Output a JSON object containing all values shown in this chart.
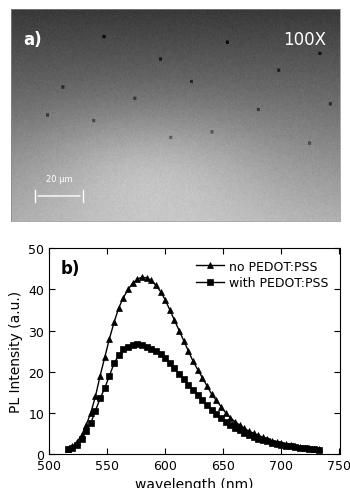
{
  "label_a": "a)",
  "label_b": "b)",
  "magnification": "100X",
  "scale_bar_text": "20 μm",
  "xlabel": "wavelength (nm)",
  "ylabel": "PL Intensity (a.u.)",
  "xlim": [
    500,
    750
  ],
  "ylim": [
    0,
    50
  ],
  "xticks": [
    500,
    550,
    600,
    650,
    700,
    750
  ],
  "yticks": [
    0,
    10,
    20,
    30,
    40,
    50
  ],
  "legend1": "no PEDOT:PSS",
  "legend2": "with PEDOT:PSS",
  "line_color": "#000000",
  "marker1": "^",
  "marker2": "s",
  "no_pedot_x": [
    516,
    520,
    524,
    528,
    532,
    536,
    540,
    544,
    548,
    552,
    556,
    560,
    564,
    568,
    572,
    576,
    580,
    584,
    588,
    592,
    596,
    600,
    604,
    608,
    612,
    616,
    620,
    624,
    628,
    632,
    636,
    640,
    644,
    648,
    652,
    656,
    660,
    664,
    668,
    672,
    676,
    680,
    684,
    688,
    692,
    696,
    700,
    704,
    708,
    712,
    716,
    720,
    724,
    728,
    732
  ],
  "no_pedot_y": [
    1.2,
    1.8,
    2.8,
    4.5,
    7.0,
    10.0,
    14.0,
    19.0,
    23.5,
    28.0,
    32.0,
    35.5,
    38.0,
    40.0,
    41.5,
    42.5,
    43.0,
    42.8,
    42.2,
    41.0,
    39.5,
    37.5,
    35.0,
    32.5,
    30.0,
    27.5,
    25.0,
    22.5,
    20.5,
    18.5,
    16.5,
    14.5,
    13.0,
    11.5,
    10.0,
    8.8,
    7.8,
    7.0,
    6.2,
    5.5,
    5.0,
    4.5,
    4.0,
    3.6,
    3.2,
    2.9,
    2.6,
    2.3,
    2.1,
    1.9,
    1.7,
    1.5,
    1.4,
    1.2,
    1.1
  ],
  "with_pedot_x": [
    516,
    520,
    524,
    528,
    532,
    536,
    540,
    544,
    548,
    552,
    556,
    560,
    564,
    568,
    572,
    576,
    580,
    584,
    588,
    592,
    596,
    600,
    604,
    608,
    612,
    616,
    620,
    624,
    628,
    632,
    636,
    640,
    644,
    648,
    652,
    656,
    660,
    664,
    668,
    672,
    676,
    680,
    684,
    688,
    692,
    696,
    700,
    704,
    708,
    712,
    716,
    720,
    724,
    728,
    732
  ],
  "with_pedot_y": [
    1.1,
    1.5,
    2.2,
    3.5,
    5.5,
    7.5,
    10.5,
    13.5,
    16.0,
    19.0,
    22.0,
    24.0,
    25.5,
    26.0,
    26.5,
    26.8,
    26.5,
    26.0,
    25.5,
    25.0,
    24.2,
    23.2,
    22.0,
    20.8,
    19.5,
    18.2,
    16.8,
    15.5,
    14.2,
    13.0,
    11.8,
    10.7,
    9.6,
    8.7,
    7.8,
    7.0,
    6.3,
    5.7,
    5.1,
    4.6,
    4.1,
    3.7,
    3.3,
    3.0,
    2.7,
    2.4,
    2.2,
    2.0,
    1.8,
    1.6,
    1.5,
    1.3,
    1.2,
    1.1,
    1.0
  ],
  "fig_bg": "#ffffff",
  "title_fontsize": 12,
  "tick_fontsize": 9,
  "label_fontsize": 10,
  "legend_fontsize": 9
}
